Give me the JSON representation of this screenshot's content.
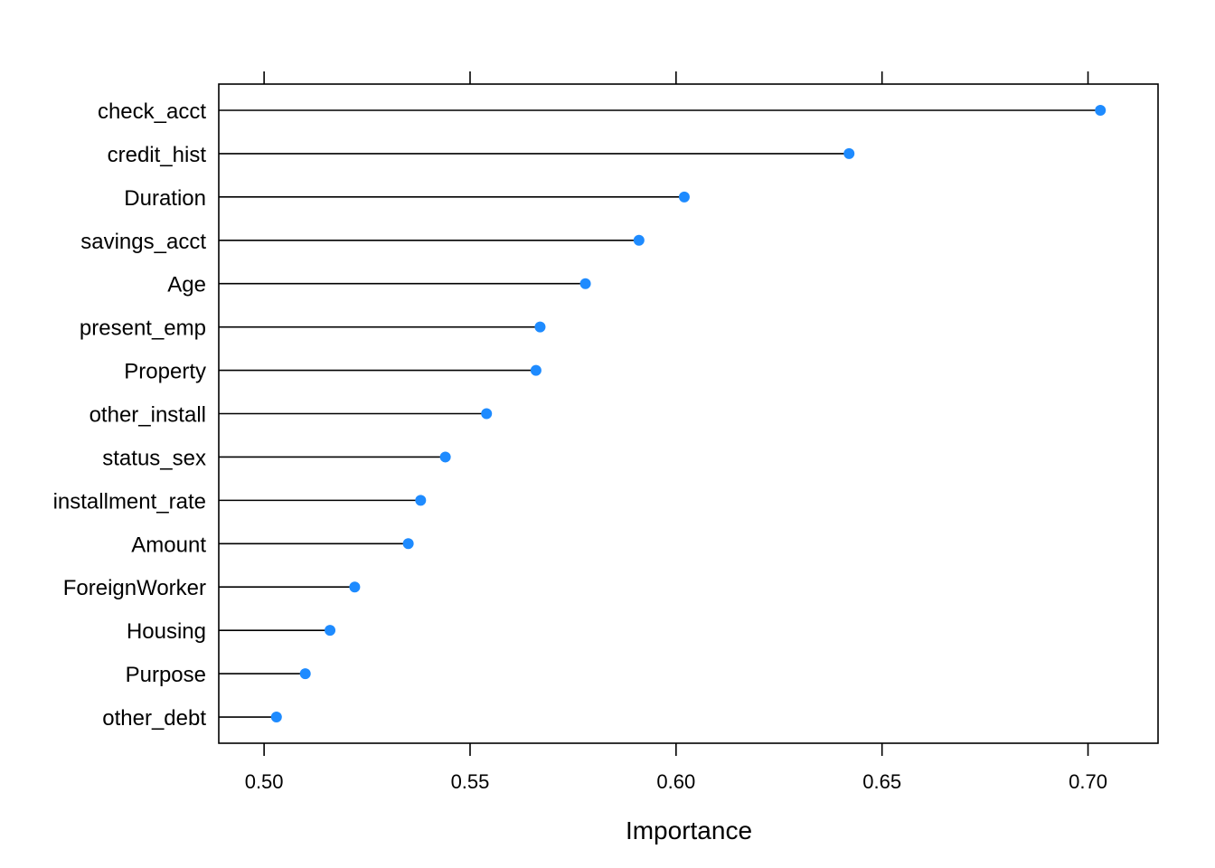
{
  "chart_data": {
    "type": "dot",
    "xlabel": "Importance",
    "ylabel": "",
    "title": "",
    "xlim": [
      0.489,
      0.717
    ],
    "x_ticks": [
      "0.50",
      "0.55",
      "0.60",
      "0.65",
      "0.70"
    ],
    "grid": false,
    "legend": "none",
    "colors": {
      "point": "#1E8BFF",
      "segment": "#000000",
      "frame": "#000000"
    },
    "categories": [
      "check_acct",
      "credit_hist",
      "Duration",
      "savings_acct",
      "Age",
      "present_emp",
      "Property",
      "other_install",
      "status_sex",
      "installment_rate",
      "Amount",
      "ForeignWorker",
      "Housing",
      "Purpose",
      "other_debt"
    ],
    "values": [
      0.703,
      0.642,
      0.602,
      0.591,
      0.578,
      0.567,
      0.566,
      0.554,
      0.544,
      0.538,
      0.535,
      0.522,
      0.516,
      0.51,
      0.503
    ]
  }
}
